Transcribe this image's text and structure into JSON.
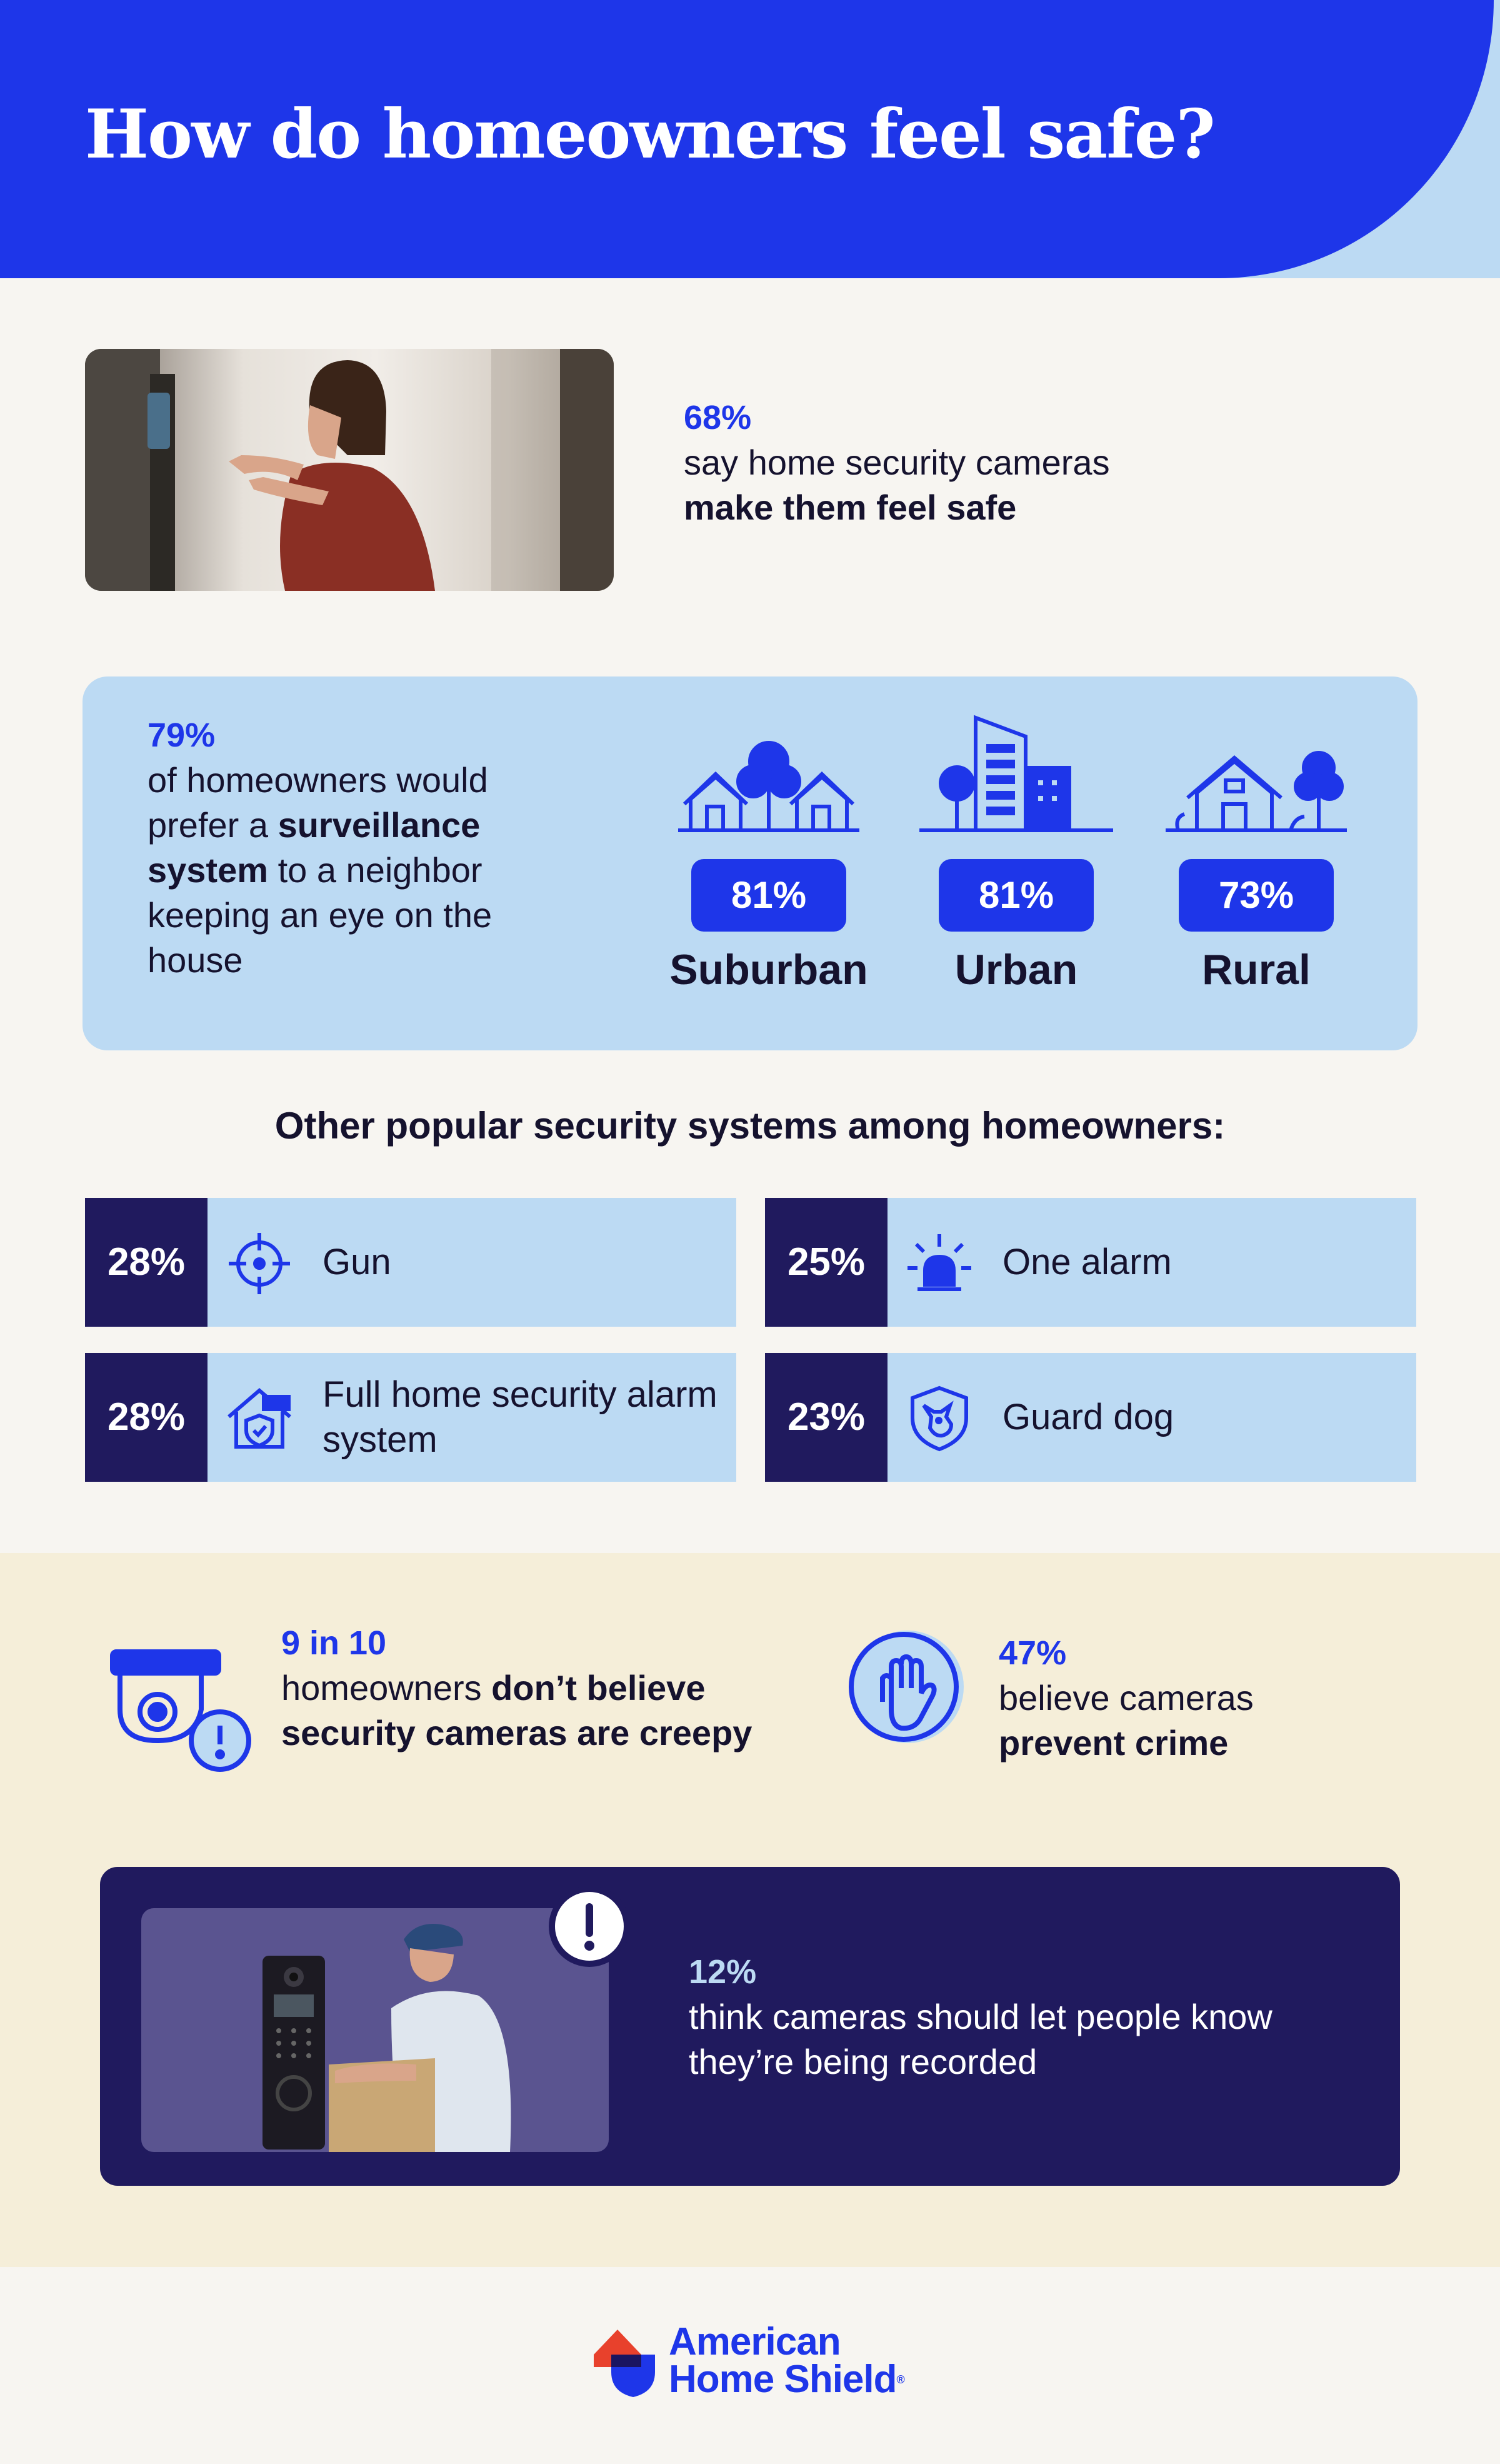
{
  "header": {
    "title": "How do homeowners feel safe?"
  },
  "stat_cameras": {
    "value": "68%",
    "line1": "say home security cameras",
    "line2": "make them feel safe"
  },
  "stat_surveillance": {
    "value": "79%",
    "text_a": "of homeowners would prefer a ",
    "text_b": "surveillance system",
    "text_c": " to a neighbor keeping an eye on the house"
  },
  "areas": [
    {
      "label": "Suburban",
      "value": "81%",
      "icon": "suburban-houses-icon"
    },
    {
      "label": "Urban",
      "value": "81%",
      "icon": "urban-buildings-icon"
    },
    {
      "label": "Rural",
      "value": "73%",
      "icon": "rural-house-icon"
    }
  ],
  "other_systems": {
    "title": "Other popular security systems among homeowners:",
    "items": [
      {
        "value": "28%",
        "label": "Gun",
        "icon": "crosshair-icon"
      },
      {
        "value": "25%",
        "label": "One alarm",
        "icon": "alarm-siren-icon"
      },
      {
        "value": "28%",
        "label": "Full home security alarm system",
        "icon": "home-shield-icon"
      },
      {
        "value": "23%",
        "label": "Guard dog",
        "icon": "guard-dog-icon"
      }
    ]
  },
  "stat_creepy": {
    "value": "9 in 10",
    "text_a": "homeowners ",
    "text_b": "don’t believe security cameras are creepy"
  },
  "stat_prevent": {
    "value": "47%",
    "line1": "believe cameras",
    "line2": "prevent crime"
  },
  "stat_recorded": {
    "value": "12%",
    "text": "think cameras should let people know they’re being recorded"
  },
  "logo": {
    "line1": "American",
    "line2": "Home Shield"
  },
  "colors": {
    "brand_blue": "#1e36e9",
    "light_blue": "#bcdaf3",
    "navy": "#201a5e",
    "beige": "#f5eed9",
    "background": "#f7f5f1"
  }
}
